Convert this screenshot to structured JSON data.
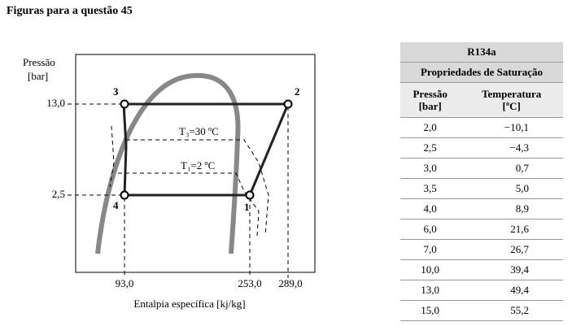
{
  "heading": "Figuras para a questão 45",
  "diagram": {
    "y_axis_label": [
      "Pressão",
      "[bar]"
    ],
    "x_axis_label": "Entalpia específica [kj/kg]",
    "y_ticks": [
      "13,0",
      "2,5"
    ],
    "x_ticks": [
      "93,0",
      "253,0",
      "289,0"
    ],
    "points": [
      "1",
      "2",
      "3",
      "4"
    ],
    "isotherms": [
      "T₃=30 ºC",
      "T₁=2 ºC"
    ]
  },
  "table": {
    "title": "R134a",
    "subtitle": "Propriedades de Saturação",
    "headers": [
      "Pressão\n[bar]",
      "Temperatura\n[ºC]"
    ],
    "rows": [
      [
        "2,0",
        "−10,1"
      ],
      [
        "2,5",
        "−4,3"
      ],
      [
        "3,0",
        "0,7"
      ],
      [
        "3,5",
        "5,0"
      ],
      [
        "4,0",
        "8,9"
      ],
      [
        "6,0",
        "21,6"
      ],
      [
        "7,0",
        "26,7"
      ],
      [
        "10,0",
        "39,4"
      ],
      [
        "13,0",
        "49,4"
      ],
      [
        "15,0",
        "55,2"
      ]
    ]
  }
}
